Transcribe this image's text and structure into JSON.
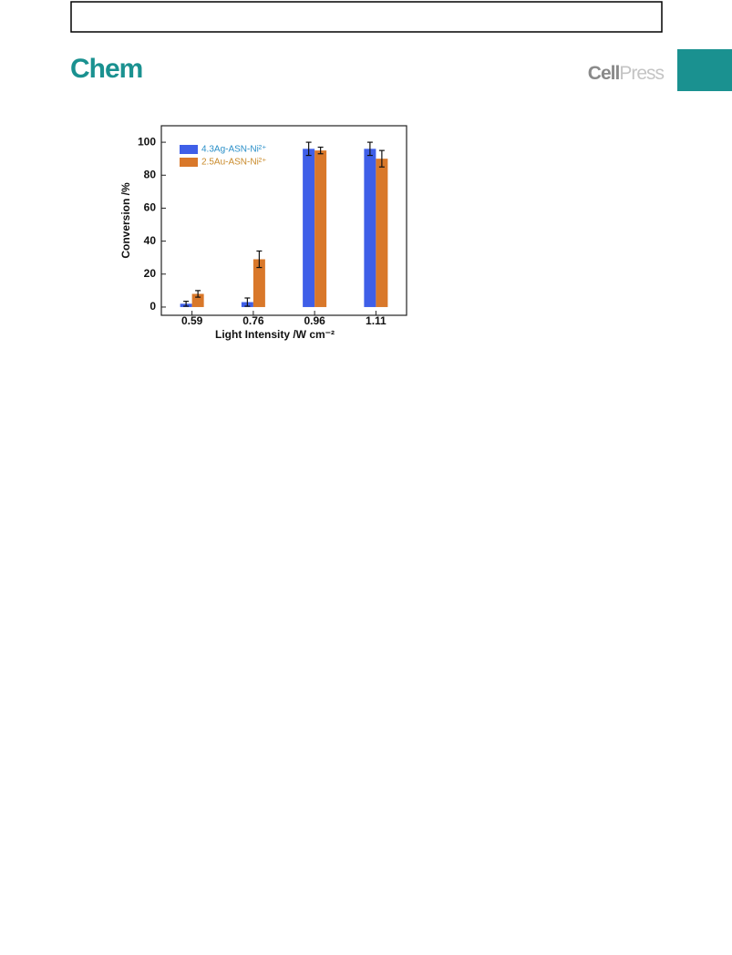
{
  "header": {
    "journal": "Chem",
    "publisher_cell": "Cell",
    "publisher_press": "Press"
  },
  "chart_data": {
    "type": "bar",
    "xlabel": "Light Intensity /W cm⁻²",
    "ylabel": "Conversion /%",
    "categories": [
      "0.59",
      "0.76",
      "0.96",
      "1.11"
    ],
    "series": [
      {
        "name": "4.3Ag-ASN-Ni²⁺",
        "color": "#3f5fe8",
        "values": [
          2,
          3,
          96,
          96
        ],
        "errors": [
          1.5,
          2.5,
          4,
          4
        ]
      },
      {
        "name": "2.5Au-ASN-Ni²⁺",
        "color": "#d9782a",
        "values": [
          8,
          29,
          95,
          90
        ],
        "errors": [
          2,
          5,
          2,
          5
        ]
      }
    ],
    "ylim": [
      -5,
      110
    ],
    "yticks": [
      0,
      20,
      40,
      60,
      80,
      100
    ],
    "legend": "upper left"
  }
}
